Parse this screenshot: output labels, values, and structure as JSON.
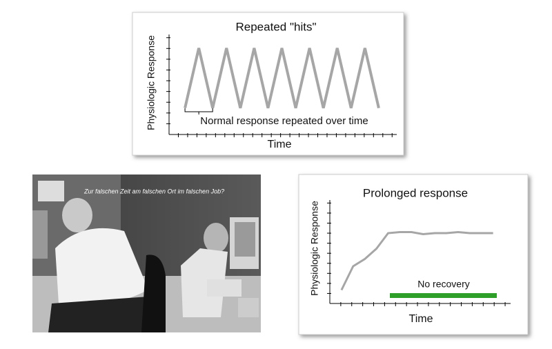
{
  "chart_data": [
    {
      "type": "line",
      "title": "Repeated \"hits\"",
      "ylabel": "Physiologic Response",
      "xlabel": "Time",
      "annotation": "Normal response repeated over time",
      "x": [
        0,
        1,
        2,
        3,
        4,
        5,
        6,
        7,
        8,
        9,
        10,
        11,
        12,
        13,
        14
      ],
      "values": [
        3.7,
        12.1,
        3.7,
        12.1,
        3.7,
        12.1,
        3.7,
        12.1,
        3.7,
        12.1,
        3.7,
        12.1,
        3.7,
        12.1,
        3.7
      ],
      "color": "#a6a6a6",
      "xlim": [
        -1.15,
        15.3
      ],
      "ylim": [
        0,
        14
      ]
    },
    {
      "type": "line",
      "title": "Prolonged response",
      "ylabel": "Physiologic Response",
      "xlabel": "Time",
      "annotation": "No recovery",
      "annotation_color": "#2ea02a",
      "x": [
        1,
        2,
        3,
        4,
        5,
        6,
        7,
        8,
        9,
        10,
        11,
        12,
        13,
        14
      ],
      "values": [
        1.3,
        3.6,
        4.3,
        5.3,
        6.8,
        6.9,
        6.9,
        6.7,
        6.8,
        6.8,
        6.9,
        6.8,
        6.8,
        6.8
      ],
      "color": "#a6a6a6",
      "xlim": [
        0,
        15.5
      ],
      "ylim": [
        0,
        10
      ]
    }
  ],
  "photo": {
    "caption": "Zur falschen Zeit am falschen Ort im falschen Job?"
  }
}
